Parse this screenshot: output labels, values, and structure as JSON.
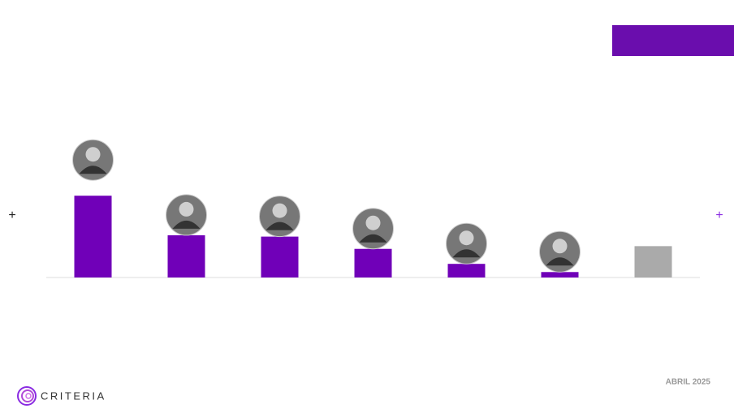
{
  "chart_data": {
    "type": "bar",
    "categories": [
      null,
      null,
      null,
      null,
      null,
      null,
      null
    ],
    "values": [
      30,
      15.5,
      15,
      10.5,
      5,
      2,
      11.5
    ],
    "colors": [
      "#7000b8",
      "#7000b8",
      "#7000b8",
      "#7000b8",
      "#7000b8",
      "#7000b8",
      "#aaaaaa"
    ],
    "ylim": [
      0,
      50
    ]
  },
  "markers": [
    "+",
    "+"
  ],
  "footer": {
    "brand": "CRITERIA",
    "date": "ABRIL 2025"
  }
}
